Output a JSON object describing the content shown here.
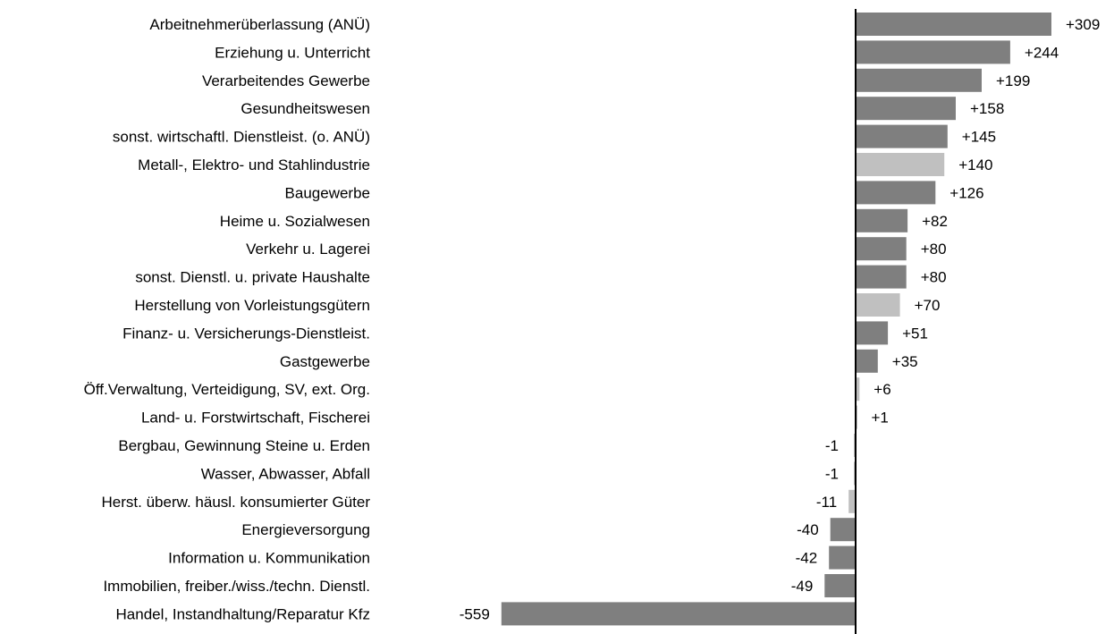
{
  "chart_data": {
    "type": "bar",
    "orientation": "horizontal",
    "grid": false,
    "legend": "none",
    "xlim": [
      -559,
      309
    ],
    "colors": {
      "dark": "#7f7f7f",
      "light": "#c0c0c0",
      "axis": "#000000"
    },
    "categories": [
      "Arbeitnehmerüberlassung (ANÜ)",
      "Erziehung u. Unterricht",
      "Verarbeitendes Gewerbe",
      "Gesundheitswesen",
      "sonst. wirtschaftl. Dienstleist. (o. ANÜ)",
      "Metall-, Elektro- und Stahlindustrie",
      "Baugewerbe",
      "Heime u. Sozialwesen",
      "Verkehr u. Lagerei",
      "sonst. Dienstl. u. private Haushalte",
      "Herstellung von Vorleistungsgütern",
      "Finanz- u. Versicherungs-Dienstleist.",
      "Gastgewerbe",
      "Öff.Verwaltung, Verteidigung, SV, ext. Org.",
      "Land- u. Forstwirtschaft, Fischerei",
      "Bergbau, Gewinnung Steine u. Erden",
      "Wasser, Abwasser, Abfall",
      "Herst. überw. häusl. konsumierter Güter",
      "Energieversorgung",
      "Information u. Kommunikation",
      "Immobilien, freiber./wiss./techn. Dienstl.",
      "Handel, Instandhaltung/Reparatur Kfz"
    ],
    "values": [
      309,
      244,
      199,
      158,
      145,
      140,
      126,
      82,
      80,
      80,
      70,
      51,
      35,
      6,
      1,
      -1,
      -1,
      -11,
      -40,
      -42,
      -49,
      -559
    ],
    "value_labels": [
      "+309",
      "+244",
      "+199",
      "+158",
      "+145",
      "+140",
      "+126",
      "+82",
      "+80",
      "+80",
      "+70",
      "+51",
      "+35",
      "+6",
      "+1",
      "-1",
      "-1",
      "-11",
      "-40",
      "-42",
      "-49",
      "-559"
    ],
    "shades": [
      "dark",
      "dark",
      "dark",
      "dark",
      "dark",
      "light",
      "dark",
      "dark",
      "dark",
      "dark",
      "light",
      "dark",
      "dark",
      "light",
      "dark",
      "dark",
      "dark",
      "light",
      "dark",
      "dark",
      "dark",
      "dark"
    ]
  }
}
